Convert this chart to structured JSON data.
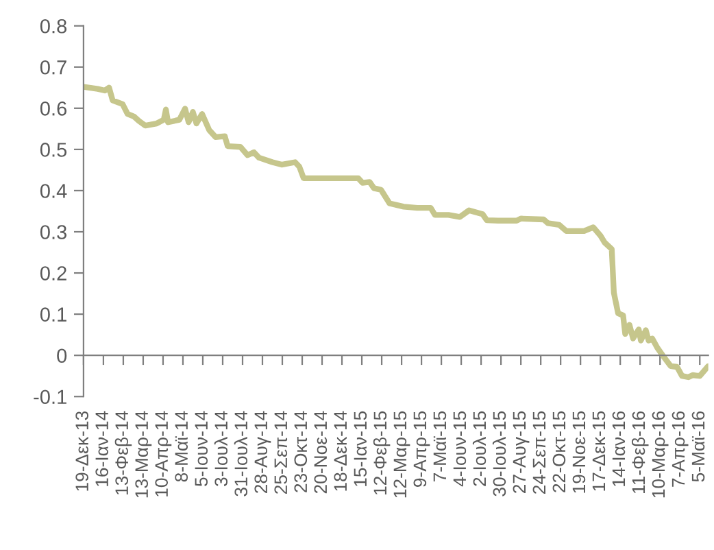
{
  "chart_data": {
    "type": "line",
    "x": [
      "2013-12-19",
      "2014-01-08",
      "2014-01-18",
      "2014-01-24",
      "2014-01-29",
      "2014-02-12",
      "2014-02-19",
      "2014-02-28",
      "2014-03-07",
      "2014-03-16",
      "2014-04-01",
      "2014-04-11",
      "2014-04-14",
      "2014-04-17",
      "2014-05-03",
      "2014-05-11",
      "2014-05-16",
      "2014-05-22",
      "2014-05-27",
      "2014-06-04",
      "2014-06-14",
      "2014-06-23",
      "2014-07-06",
      "2014-07-10",
      "2014-07-28",
      "2014-08-07",
      "2014-08-16",
      "2014-08-23",
      "2014-09-11",
      "2014-09-24",
      "2014-10-13",
      "2014-10-19",
      "2014-10-25",
      "2014-11-07",
      "2014-12-03",
      "2015-01-10",
      "2015-01-16",
      "2015-01-26",
      "2015-02-01",
      "2015-02-11",
      "2015-02-23",
      "2015-03-15",
      "2015-04-03",
      "2015-04-22",
      "2015-04-28",
      "2015-05-17",
      "2015-06-02",
      "2015-06-15",
      "2015-07-04",
      "2015-07-10",
      "2015-07-26",
      "2015-08-21",
      "2015-08-27",
      "2015-09-28",
      "2015-10-04",
      "2015-10-20",
      "2015-10-30",
      "2015-11-24",
      "2015-12-07",
      "2015-12-17",
      "2015-12-23",
      "2016-01-02",
      "2016-01-05",
      "2016-01-11",
      "2016-01-18",
      "2016-01-21",
      "2016-01-27",
      "2016-02-01",
      "2016-02-09",
      "2016-02-12",
      "2016-02-19",
      "2016-02-23",
      "2016-02-28",
      "2016-03-06",
      "2016-03-15",
      "2016-03-25",
      "2016-04-03",
      "2016-04-10",
      "2016-04-19",
      "2016-04-25",
      "2016-05-05",
      "2016-05-17"
    ],
    "series": [
      {
        "color": "#c6c68c",
        "values": [
          0.652,
          0.647,
          0.643,
          0.65,
          0.619,
          0.61,
          0.586,
          0.58,
          0.569,
          0.558,
          0.563,
          0.572,
          0.597,
          0.566,
          0.572,
          0.599,
          0.566,
          0.591,
          0.563,
          0.586,
          0.547,
          0.53,
          0.532,
          0.508,
          0.506,
          0.486,
          0.493,
          0.48,
          0.469,
          0.463,
          0.469,
          0.458,
          0.43,
          0.43,
          0.43,
          0.43,
          0.419,
          0.421,
          0.406,
          0.402,
          0.369,
          0.361,
          0.358,
          0.358,
          0.341,
          0.341,
          0.336,
          0.352,
          0.343,
          0.328,
          0.327,
          0.327,
          0.332,
          0.33,
          0.321,
          0.317,
          0.302,
          0.302,
          0.311,
          0.291,
          0.274,
          0.258,
          0.152,
          0.102,
          0.097,
          0.052,
          0.074,
          0.041,
          0.063,
          0.036,
          0.061,
          0.036,
          0.041,
          0.019,
          -0.003,
          -0.026,
          -0.028,
          -0.05,
          -0.053,
          -0.048,
          -0.05,
          -0.026
        ]
      }
    ],
    "xlim": [
      "2013-12-19",
      "2016-05-17"
    ],
    "xticks": [
      {
        "value": "2013-12-19",
        "label": "19-Δεκ-13"
      },
      {
        "value": "2014-01-16",
        "label": "16-Ιαν-14"
      },
      {
        "value": "2014-02-13",
        "label": "13-Φεβ-14"
      },
      {
        "value": "2014-03-13",
        "label": "13-Μαρ-14"
      },
      {
        "value": "2014-04-10",
        "label": "10-Απρ-14"
      },
      {
        "value": "2014-05-08",
        "label": "8-Μαϊ-14"
      },
      {
        "value": "2014-06-05",
        "label": "5-Ιουν-14"
      },
      {
        "value": "2014-07-03",
        "label": "3-Ιουλ-14"
      },
      {
        "value": "2014-07-31",
        "label": "31-Ιουλ-14"
      },
      {
        "value": "2014-08-28",
        "label": "28-Αυγ-14"
      },
      {
        "value": "2014-09-25",
        "label": "25-Σεπ-14"
      },
      {
        "value": "2014-10-23",
        "label": "23-Οκτ-14"
      },
      {
        "value": "2014-11-20",
        "label": "20-Νοε-14"
      },
      {
        "value": "2014-12-18",
        "label": "18-Δεκ-14"
      },
      {
        "value": "2015-01-15",
        "label": "15-Ιαν-15"
      },
      {
        "value": "2015-02-12",
        "label": "12-Φεβ-15"
      },
      {
        "value": "2015-03-12",
        "label": "12-Μαρ-15"
      },
      {
        "value": "2015-04-09",
        "label": "9-Απρ-15"
      },
      {
        "value": "2015-05-07",
        "label": "7-Μαϊ-15"
      },
      {
        "value": "2015-06-04",
        "label": "4-Ιουν-15"
      },
      {
        "value": "2015-07-02",
        "label": "2-Ιουλ-15"
      },
      {
        "value": "2015-07-30",
        "label": "30-Ιουλ-15"
      },
      {
        "value": "2015-08-27",
        "label": "27-Αυγ-15"
      },
      {
        "value": "2015-09-24",
        "label": "24-Σεπ-15"
      },
      {
        "value": "2015-10-22",
        "label": "22-Οκτ-15"
      },
      {
        "value": "2015-11-19",
        "label": "19-Νοε-15"
      },
      {
        "value": "2015-12-17",
        "label": "17-Δεκ-15"
      },
      {
        "value": "2016-01-14",
        "label": "14-Ιαν-16"
      },
      {
        "value": "2016-02-11",
        "label": "11-Φεβ-16"
      },
      {
        "value": "2016-03-10",
        "label": "10-Μαρ-16"
      },
      {
        "value": "2016-04-07",
        "label": "7-Απρ-16"
      },
      {
        "value": "2016-05-05",
        "label": "5-Μαϊ-16"
      }
    ],
    "ylim": [
      -0.1,
      0.8
    ],
    "yticks": [
      {
        "value": -0.1,
        "label": "-0.1"
      },
      {
        "value": 0,
        "label": "0"
      },
      {
        "value": 0.1,
        "label": "0.1"
      },
      {
        "value": 0.2,
        "label": "0.2"
      },
      {
        "value": 0.3,
        "label": "0.3"
      },
      {
        "value": 0.4,
        "label": "0.4"
      },
      {
        "value": 0.5,
        "label": "0.5"
      },
      {
        "value": 0.6,
        "label": "0.6"
      },
      {
        "value": 0.7,
        "label": "0.7"
      },
      {
        "value": 0.8,
        "label": "0.8"
      }
    ],
    "tick_labels": true
  }
}
